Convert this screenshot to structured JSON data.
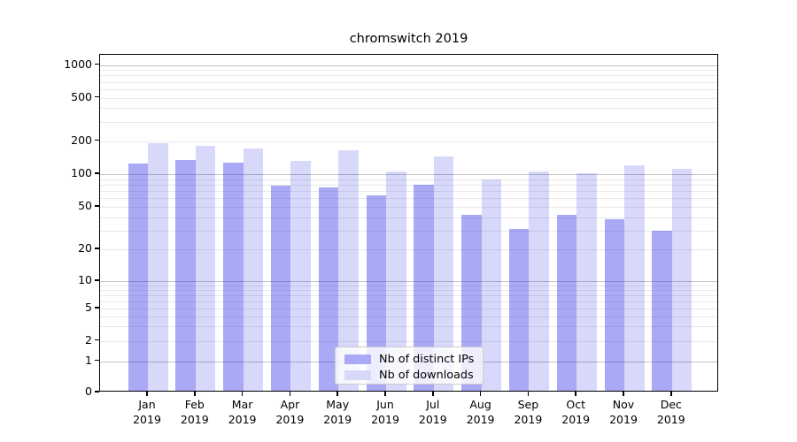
{
  "figure": {
    "title": "chromswitch 2019"
  },
  "chart_data": {
    "type": "bar",
    "title": "chromswitch 2019",
    "categories": [
      "Jan",
      "Feb",
      "Mar",
      "Apr",
      "May",
      "Jun",
      "Jul",
      "Aug",
      "Sep",
      "Oct",
      "Nov",
      "Dec"
    ],
    "category_year": "2019",
    "series": [
      {
        "name": "Nb of distinct IPs",
        "color": "#a9a9f5",
        "fill": "rgba(40,40,230,0.40)",
        "values": [
          125,
          135,
          128,
          78,
          75,
          64,
          80,
          42,
          31,
          42,
          38,
          30
        ]
      },
      {
        "name": "Nb of downloads",
        "color": "#d8d8fa",
        "fill": "rgba(40,40,230,0.18)",
        "values": [
          190,
          180,
          170,
          133,
          165,
          106,
          145,
          89,
          106,
          101,
          121,
          112
        ]
      }
    ],
    "yscale": "symlog",
    "yticks": [
      0,
      1,
      2,
      5,
      10,
      20,
      50,
      100,
      200,
      500,
      1000
    ],
    "ylim": [
      0,
      1300
    ],
    "xlabel": "",
    "ylabel": "",
    "grid": true,
    "legend_position": "lower center"
  }
}
